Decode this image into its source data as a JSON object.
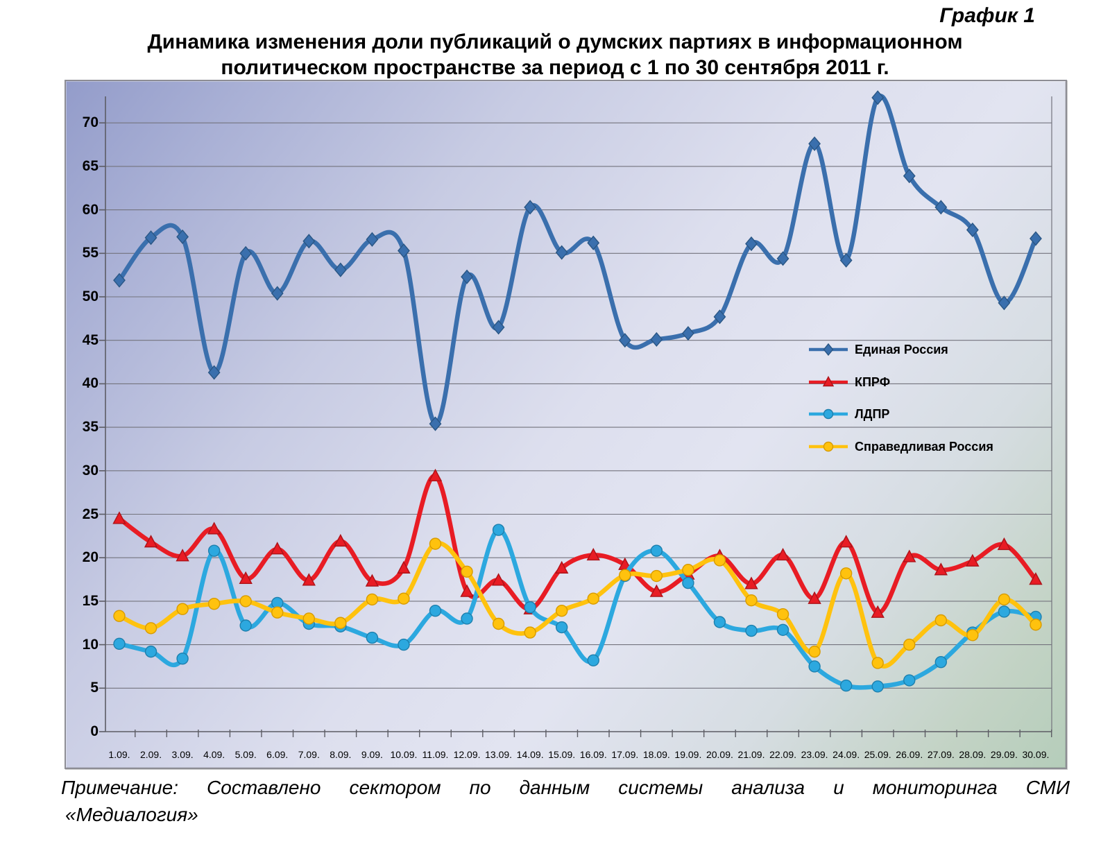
{
  "header": {
    "figure_label": "График 1",
    "title_line1": "Динамика изменения доли публикаций о думских партиях в информационном",
    "title_line2": "политическом пространстве за период с 1 по 30 сентября 2011 г."
  },
  "note": {
    "line1": "Примечание: Составлено сектором по данным системы  анализа и мониторинга СМИ",
    "line2": "«Медиалогия»"
  },
  "chart_data": {
    "type": "line",
    "title": "Динамика изменения доли публикаций о думских партиях в информационном политическом пространстве за период с 1 по 30 сентября 2011 г.",
    "xlabel": "",
    "ylabel": "",
    "ylim": [
      0,
      74
    ],
    "grid": true,
    "legend_position": "middle-right",
    "y_ticks": [
      0,
      5,
      10,
      15,
      20,
      25,
      30,
      35,
      40,
      45,
      50,
      55,
      60,
      65,
      70
    ],
    "categories": [
      "1.09.",
      "2.09.",
      "3.09.",
      "4.09.",
      "5.09.",
      "6.09.",
      "7.09.",
      "8.09.",
      "9.09.",
      "10.09.",
      "11.09.",
      "12.09.",
      "13.09.",
      "14.09.",
      "15.09.",
      "16.09.",
      "17.09.",
      "18.09.",
      "19.09.",
      "20.09.",
      "21.09.",
      "22.09.",
      "23.09.",
      "24.09.",
      "25.09.",
      "26.09.",
      "27.09.",
      "28.09.",
      "29.09.",
      "30.09."
    ],
    "series": [
      {
        "name": "Единая Россия",
        "color": "#3A6FAD",
        "edge_color": "#2A5684",
        "marker": "diamond",
        "values": [
          51.9,
          56.8,
          56.9,
          41.3,
          55.0,
          50.4,
          56.4,
          53.1,
          56.6,
          55.3,
          35.4,
          52.3,
          46.5,
          60.3,
          55.1,
          56.2,
          45.0,
          45.1,
          45.8,
          47.7,
          56.1,
          54.4,
          67.6,
          54.2,
          72.9,
          63.9,
          60.3,
          57.7,
          49.3,
          56.7
        ]
      },
      {
        "name": "КПРФ",
        "color": "#E81C24",
        "edge_color": "#AC1218",
        "marker": "triangle",
        "values": [
          24.5,
          21.8,
          20.2,
          23.3,
          17.6,
          21.0,
          17.4,
          21.9,
          17.3,
          18.8,
          29.4,
          16.1,
          17.4,
          14.1,
          18.8,
          20.3,
          19.2,
          16.1,
          18.1,
          20.2,
          17.0,
          20.3,
          15.3,
          21.8,
          13.7,
          20.1,
          18.6,
          19.6,
          21.5,
          17.5
        ]
      },
      {
        "name": "ЛДПР",
        "color": "#2CA8DF",
        "edge_color": "#1D7FAD",
        "marker": "circle",
        "values": [
          10.1,
          9.2,
          8.4,
          20.8,
          12.2,
          14.8,
          12.4,
          12.1,
          10.8,
          10.0,
          13.9,
          13.0,
          23.2,
          14.3,
          12.0,
          8.2,
          17.9,
          20.8,
          17.1,
          12.6,
          11.6,
          11.7,
          7.5,
          5.3,
          5.2,
          5.9,
          8.0,
          11.4,
          13.8,
          13.2
        ]
      },
      {
        "name": "Справедливая Россия",
        "color": "#FFC20E",
        "edge_color": "#D89B00",
        "marker": "circle",
        "values": [
          13.3,
          11.9,
          14.1,
          14.7,
          15.0,
          13.7,
          13.0,
          12.5,
          15.2,
          15.3,
          21.6,
          18.4,
          12.4,
          11.4,
          13.9,
          15.3,
          18.0,
          17.9,
          18.6,
          19.7,
          15.1,
          13.5,
          9.2,
          18.2,
          7.9,
          10.0,
          12.8,
          11.1,
          15.2,
          12.3
        ]
      }
    ]
  }
}
